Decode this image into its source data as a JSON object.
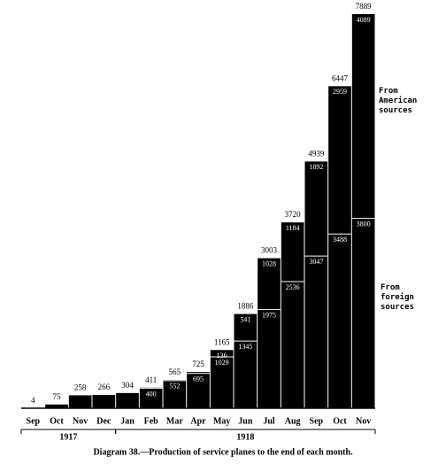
{
  "chart_data": {
    "type": "stacked-bar",
    "caption": "Diagram 38.—Production of service planes to the end of each month.",
    "categories": [
      "Sep",
      "Oct",
      "Nov",
      "Dec",
      "Jan",
      "Feb",
      "Mar",
      "Apr",
      "May",
      "Jun",
      "Jul",
      "Aug",
      "Sep",
      "Oct",
      "Nov"
    ],
    "years": [
      "1917",
      "1918"
    ],
    "series": [
      {
        "name": "From foreign sources",
        "color": "#000000",
        "values": [
          4,
          75,
          258,
          266,
          304,
          400,
          552,
          695,
          1029,
          1345,
          1975,
          2536,
          3047,
          3488,
          3800
        ]
      },
      {
        "name": "From American sources",
        "color": "#000000",
        "values": [
          0,
          0,
          0,
          0,
          0,
          11,
          13,
          30,
          136,
          541,
          1028,
          1184,
          1892,
          2959,
          4089
        ]
      }
    ],
    "totals": [
      4,
      75,
      258,
      266,
      304,
      411,
      565,
      725,
      1165,
      1886,
      3003,
      3720,
      4939,
      6447,
      7889
    ]
  }
}
